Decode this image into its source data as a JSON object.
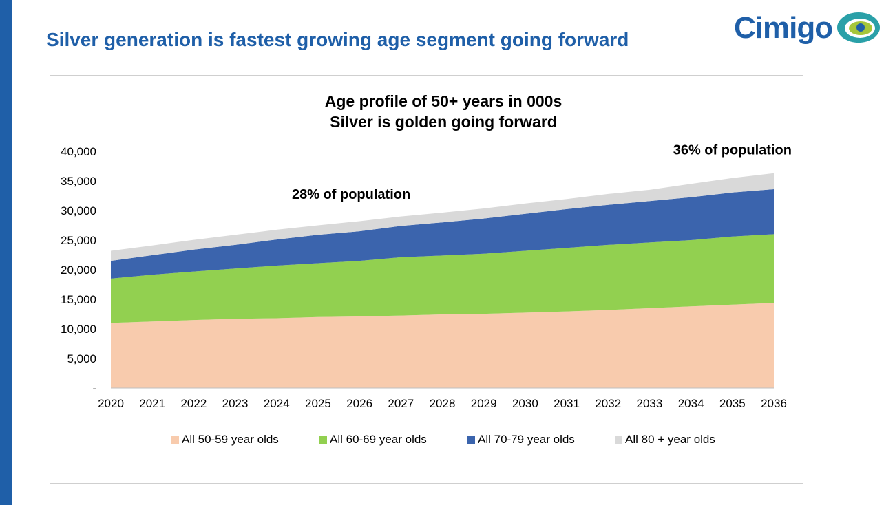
{
  "slide": {
    "title": "Silver generation is fastest growing age segment going forward",
    "logo_text": "Cimigo",
    "accent_color": "#1f5fa8"
  },
  "chart_data": {
    "type": "area",
    "stacked": true,
    "title": "Age profile of 50+ years in 000s",
    "subtitle": "Silver is golden going forward",
    "x": [
      "2020",
      "2021",
      "2022",
      "2023",
      "2024",
      "2025",
      "2026",
      "2027",
      "2028",
      "2029",
      "2030",
      "2031",
      "2032",
      "2033",
      "2034",
      "2035",
      "2036"
    ],
    "ylim": [
      0,
      40000
    ],
    "yticks": [
      0,
      5000,
      10000,
      15000,
      20000,
      25000,
      30000,
      35000,
      40000
    ],
    "ytick_labels": [
      "-",
      "5,000",
      "10,000",
      "15,000",
      "20,000",
      "25,000",
      "30,000",
      "35,000",
      "40,000"
    ],
    "grid": false,
    "legend_position": "bottom",
    "series": [
      {
        "name": "All 50-59 year olds",
        "color": "#f8cbad",
        "values": [
          11000,
          11250,
          11500,
          11700,
          11800,
          12000,
          12100,
          12250,
          12450,
          12550,
          12750,
          12950,
          13200,
          13500,
          13800,
          14100,
          14400
        ]
      },
      {
        "name": "All 60-69 year olds",
        "color": "#92d050",
        "values": [
          7500,
          7900,
          8200,
          8500,
          8900,
          9100,
          9400,
          9850,
          9950,
          10150,
          10450,
          10750,
          11000,
          11100,
          11200,
          11500,
          11600
        ]
      },
      {
        "name": "All 70-79 year olds",
        "color": "#3b64ad",
        "values": [
          3000,
          3300,
          3700,
          4000,
          4400,
          4800,
          5000,
          5300,
          5600,
          5950,
          6250,
          6550,
          6750,
          7000,
          7250,
          7450,
          7600
        ]
      },
      {
        "name": "All 80 + year olds",
        "color": "#d9d9d9",
        "values": [
          1700,
          1650,
          1650,
          1700,
          1650,
          1600,
          1700,
          1600,
          1650,
          1700,
          1750,
          1700,
          1850,
          1900,
          2250,
          2450,
          2700
        ]
      }
    ],
    "annotations": [
      {
        "text": "28%  of population",
        "year": "2025.8",
        "value": 32000
      },
      {
        "text": "36%  of population",
        "year": "2035",
        "value": 39500
      }
    ]
  }
}
